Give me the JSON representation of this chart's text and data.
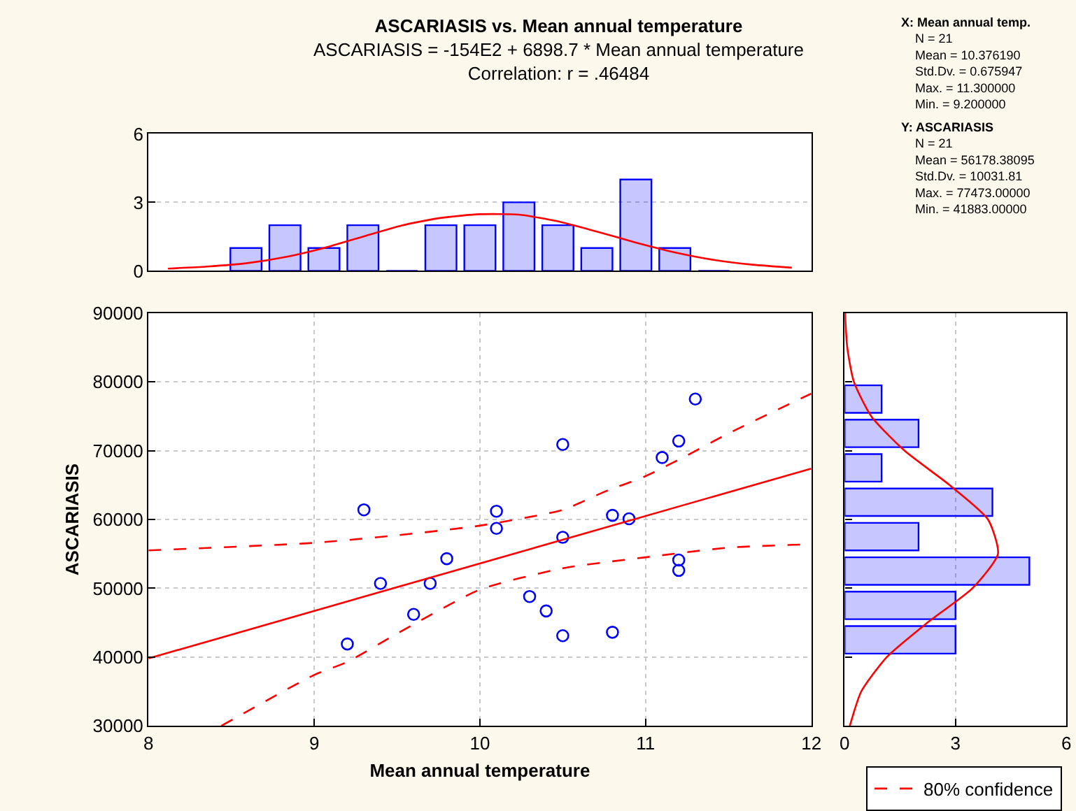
{
  "chart_data": [
    {
      "type": "bar",
      "title": "ASCARIASIS vs. Mean annual temperature",
      "subtitle": "ASCARIASIS = -154E2 + 6898.7 * Mean annual temperature\nCorrelation: r = .46484",
      "categories": [
        null,
        null,
        null,
        null,
        null,
        null,
        null,
        null,
        null,
        null,
        null,
        null,
        null,
        null,
        null,
        null,
        null
      ],
      "series": [
        {
          "type": "bar",
          "color": "#0000ff",
          "values": [
            null,
            null,
            1,
            2,
            1,
            2,
            0,
            2,
            2,
            3,
            2,
            1,
            4,
            1,
            0,
            null,
            null
          ]
        },
        {
          "type": "line",
          "color": "#ff0000",
          "values": [
            0.1,
            0.19,
            0.33,
            0.6,
            1.0,
            1.5,
            1.99,
            2.32,
            2.48,
            2.46,
            2.17,
            1.72,
            1.24,
            0.81,
            0.48,
            0.27,
            0.14
          ]
        }
      ],
      "ylim": [
        0,
        6
      ],
      "yticks": [
        0,
        3,
        6
      ],
      "grid": "y",
      "tick_labels": "y"
    },
    {
      "type": "other",
      "annotations": [
        "X: Mean annual temp.\nN = 21\nMean = 10.376190\nStd.Dv. = 0.675947\nMax. = 11.300000\nMin. = 9.200000",
        "Y: ASCARIASIS\nN = 21\nMean = 56178.38095\nStd.Dv. = 10031.81\nMax. = 77473.00000\nMin. = 41883.00000"
      ]
    },
    {
      "type": "scatter",
      "xlabel": "Mean annual temperature",
      "ylabel": "ASCARIASIS",
      "series": [
        {
          "type": "scatter",
          "color": "#0000ff",
          "marker": "circle",
          "x": [
            9.2,
            9.3,
            9.4,
            9.6,
            9.7,
            9.8,
            10.1,
            10.1,
            10.3,
            10.4,
            10.5,
            10.5,
            10.5,
            10.8,
            10.8,
            10.9,
            11.1,
            11.2,
            11.2,
            11.2,
            11.3
          ],
          "values": [
            41900,
            61400,
            50700,
            46200,
            50700,
            54300,
            61200,
            58700,
            48800,
            46700,
            43100,
            57400,
            70900,
            43600,
            60600,
            60100,
            69000,
            71400,
            54100,
            52600,
            77500
          ]
        },
        {
          "type": "line",
          "color": "#ff0000",
          "x": [
            8,
            12
          ],
          "values": [
            39800,
            67400
          ]
        },
        {
          "type": "line",
          "color": "#ff0000",
          "line_style": "dashed",
          "name": "80% confidence",
          "x": [
            8,
            9,
            9.5,
            10,
            10.5,
            10.75,
            11,
            11.25,
            11.5,
            12
          ],
          "values": [
            55500,
            56600,
            57700,
            59100,
            61400,
            64000,
            66300,
            69300,
            72500,
            78300
          ]
        },
        {
          "type": "line",
          "color": "#ff0000",
          "line_style": "dashed",
          "x": [
            8.44,
            9,
            9.2,
            9.5,
            10,
            10.5,
            11,
            11.5,
            12
          ],
          "values": [
            30000,
            37400,
            39300,
            43400,
            49800,
            52900,
            54500,
            55900,
            56400
          ]
        }
      ],
      "xlim": [
        8,
        12
      ],
      "xticks": [
        8,
        9,
        10,
        11,
        12
      ],
      "ylim": [
        30000,
        90000
      ],
      "yticks": [
        30000,
        40000,
        50000,
        60000,
        70000,
        80000,
        90000
      ],
      "grid": true,
      "legend": "bottom right"
    },
    {
      "type": "histogram",
      "orientation": "horizontal",
      "bins": [
        40000,
        45000,
        50000,
        55000,
        60000,
        65000,
        70000,
        75000,
        80000
      ],
      "series": [
        {
          "type": "histogram",
          "color": "#0000ff",
          "values": [
            3,
            3,
            5,
            2,
            4,
            1,
            2,
            1
          ]
        },
        {
          "type": "line",
          "color": "#ff0000",
          "x": [
            30000,
            35000,
            40000,
            45000,
            50000,
            55000,
            60000,
            65000,
            70000,
            75000,
            80000,
            85000,
            90000
          ],
          "values": [
            0.14,
            0.45,
            1.14,
            2.24,
            3.46,
            4.15,
            3.88,
            2.84,
            1.62,
            0.72,
            0.25,
            0.07,
            0.01
          ]
        }
      ],
      "xlim": [
        0,
        6
      ],
      "xticks": [
        0,
        3,
        6
      ],
      "ylim": [
        30000,
        90000
      ],
      "yticks": [
        {
          "value": 40000,
          "label": null
        },
        {
          "value": 50000,
          "label": null
        },
        {
          "value": 60000,
          "label": null
        },
        {
          "value": 70000,
          "label": null
        },
        {
          "value": 80000,
          "label": null
        }
      ],
      "grid": "x",
      "tick_labels": "x"
    }
  ]
}
